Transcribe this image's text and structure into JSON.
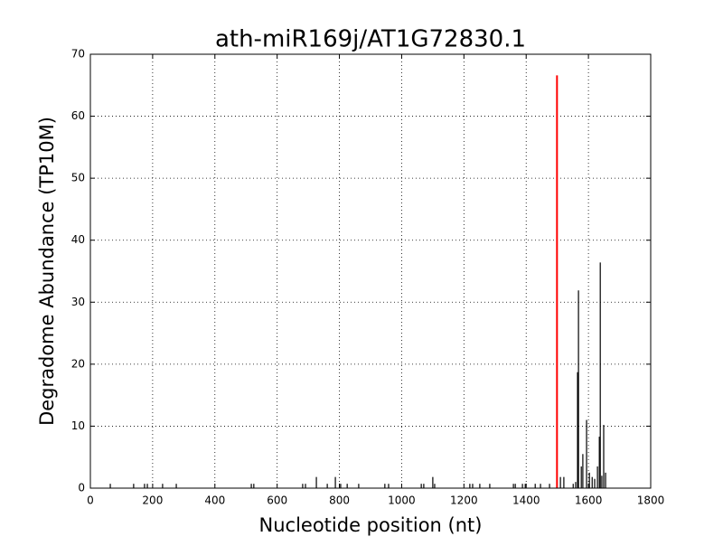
{
  "chart_data": {
    "type": "spike",
    "title": "ath-miR169j/AT1G72830.1",
    "xlabel": "Nucleotide position (nt)",
    "ylabel": "Degradome Abundance (TP10M)",
    "xlim": [
      0,
      1800
    ],
    "xticks": [
      0,
      200,
      400,
      600,
      800,
      1000,
      1200,
      1400,
      1600,
      1800
    ],
    "ylim": [
      0,
      70
    ],
    "yticks": [
      0,
      10,
      20,
      30,
      40,
      50,
      60,
      70
    ],
    "grid": true,
    "color": "#000000",
    "x": [
      64,
      139,
      174,
      183,
      232,
      276,
      517,
      525,
      682,
      691,
      726,
      761,
      787,
      804,
      825,
      862,
      946,
      958,
      1063,
      1071,
      1100,
      1106,
      1219,
      1228,
      1251,
      1283,
      1359,
      1365,
      1388,
      1397,
      1429,
      1446,
      1475,
      1510,
      1521,
      1551,
      1559,
      1565,
      1568,
      1577,
      1582,
      1594,
      1603,
      1612,
      1620,
      1629,
      1635,
      1638,
      1643,
      1649,
      1655
    ],
    "values": [
      0.7,
      0.7,
      0.7,
      0.7,
      0.7,
      0.7,
      0.7,
      0.7,
      0.7,
      0.7,
      1.8,
      0.7,
      1.8,
      0.7,
      0.7,
      0.7,
      0.7,
      0.7,
      0.7,
      0.7,
      1.8,
      0.7,
      0.7,
      0.7,
      0.7,
      0.7,
      0.7,
      0.7,
      0.7,
      0.7,
      0.7,
      0.7,
      0.7,
      1.8,
      1.8,
      0.7,
      1,
      18.7,
      31.9,
      3.5,
      5.5,
      11,
      2.5,
      1.8,
      1.5,
      3.5,
      8.3,
      36.4,
      2,
      10.2,
      2.5
    ],
    "highlight": {
      "x": 1499,
      "value": 66.6,
      "color": "#ff0000"
    }
  }
}
